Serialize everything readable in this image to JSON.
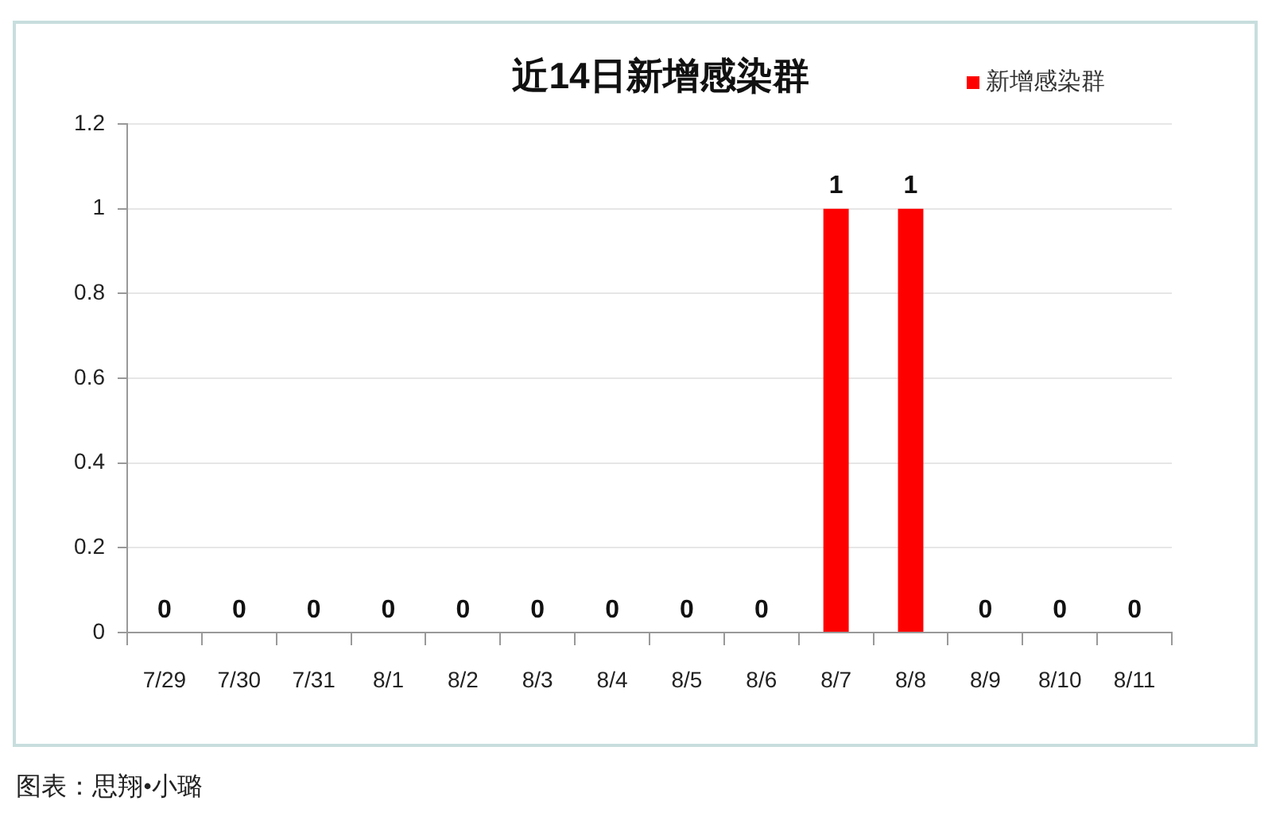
{
  "chart_data": {
    "type": "bar",
    "title": "近14日新增感染群",
    "categories": [
      "7/29",
      "7/30",
      "7/31",
      "8/1",
      "8/2",
      "8/3",
      "8/4",
      "8/5",
      "8/6",
      "8/7",
      "8/8",
      "8/9",
      "8/10",
      "8/11"
    ],
    "series": [
      {
        "name": "新增感染群",
        "color": "#ff0000",
        "values": [
          0,
          0,
          0,
          0,
          0,
          0,
          0,
          0,
          0,
          1,
          1,
          0,
          0,
          0
        ]
      }
    ],
    "ylim": [
      0,
      1.2
    ],
    "yticks": [
      0,
      0.2,
      0.4,
      0.6,
      0.8,
      1,
      1.2
    ],
    "grid": "y",
    "legend": "top right",
    "data_labels": true,
    "annotations": [
      "图表：思翔•小璐"
    ]
  }
}
